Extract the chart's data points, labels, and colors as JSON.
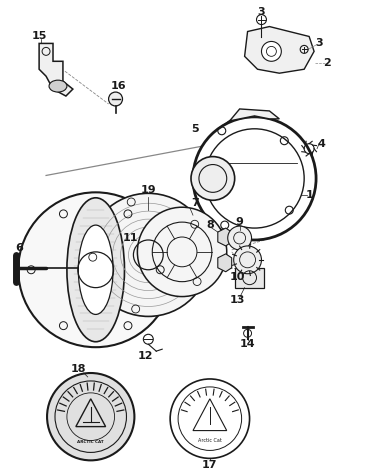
{
  "bg_color": "#ffffff",
  "line_color": "#1a1a1a",
  "gray": "#888888",
  "light_gray": "#cccccc",
  "figsize": [
    3.81,
    4.75
  ],
  "dpi": 100,
  "xlim": [
    0,
    381
  ],
  "ylim": [
    0,
    475
  ]
}
